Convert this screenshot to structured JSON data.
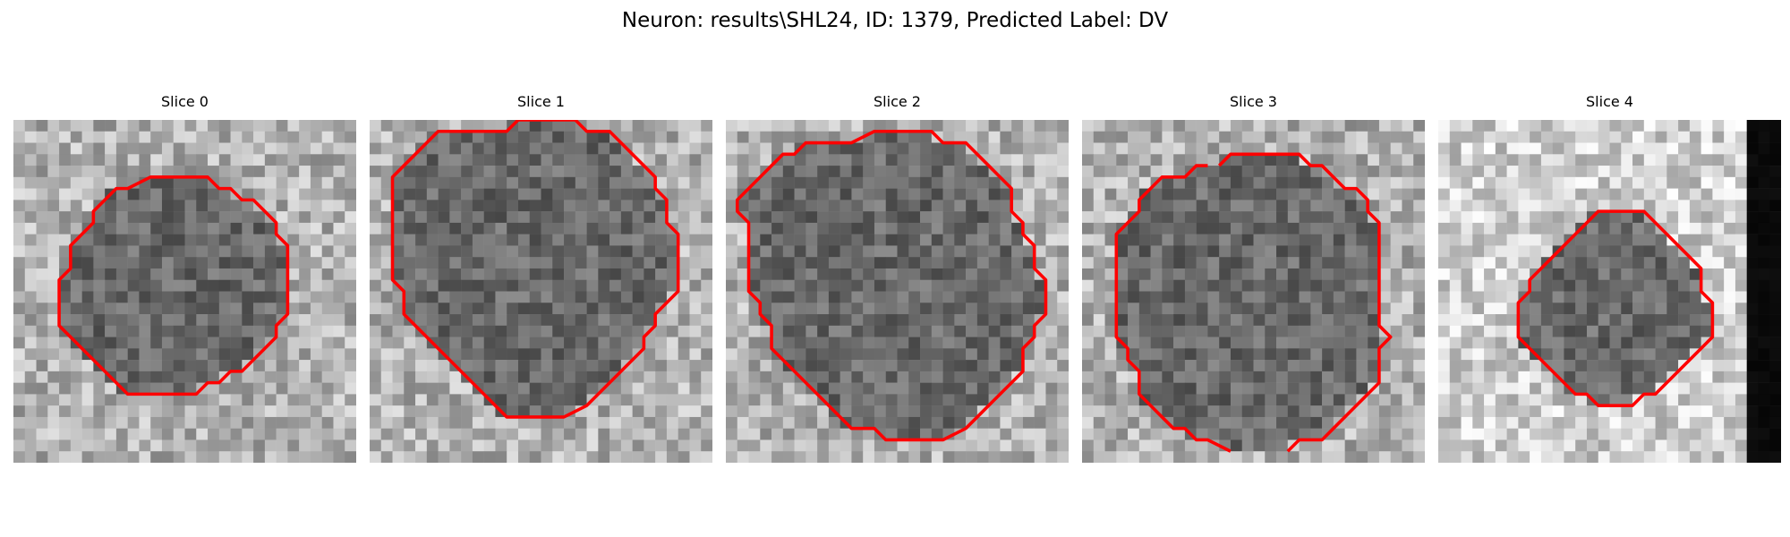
{
  "figure": {
    "title": "Neuron: results\\SHL24, ID: 1379, Predicted Label: DV"
  },
  "contour_color": "#ff0000",
  "slices": [
    {
      "title": "Slice 0",
      "contour": [
        [
          13,
          5
        ],
        [
          17,
          5
        ],
        [
          18,
          6
        ],
        [
          19,
          6
        ],
        [
          20,
          7
        ],
        [
          21,
          7
        ],
        [
          22,
          8
        ],
        [
          23,
          9
        ],
        [
          23,
          10
        ],
        [
          24,
          11
        ],
        [
          24,
          17
        ],
        [
          23,
          18
        ],
        [
          23,
          19
        ],
        [
          22,
          20
        ],
        [
          21,
          21
        ],
        [
          20,
          22
        ],
        [
          19,
          22
        ],
        [
          18,
          23
        ],
        [
          17,
          23
        ],
        [
          16,
          24
        ],
        [
          10,
          24
        ],
        [
          9,
          23
        ],
        [
          8,
          22
        ],
        [
          7,
          21
        ],
        [
          6,
          20
        ],
        [
          5,
          19
        ],
        [
          4,
          18
        ],
        [
          4,
          14
        ],
        [
          5,
          13
        ],
        [
          5,
          11
        ],
        [
          6,
          10
        ],
        [
          7,
          9
        ],
        [
          7,
          8
        ],
        [
          8,
          7
        ],
        [
          9,
          6
        ],
        [
          10,
          6
        ],
        [
          12,
          5
        ]
      ],
      "closed": true,
      "bg": "border",
      "dark_edge": false
    },
    {
      "title": "Slice 1",
      "contour": [
        [
          11,
          1
        ],
        [
          12,
          1
        ],
        [
          13,
          0
        ],
        [
          18,
          0
        ],
        [
          19,
          1
        ],
        [
          21,
          1
        ],
        [
          22,
          2
        ],
        [
          23,
          3
        ],
        [
          24,
          4
        ],
        [
          25,
          5
        ],
        [
          25,
          6
        ],
        [
          26,
          7
        ],
        [
          26,
          9
        ],
        [
          27,
          10
        ],
        [
          27,
          15
        ],
        [
          26,
          16
        ],
        [
          25,
          17
        ],
        [
          25,
          18
        ],
        [
          24,
          19
        ],
        [
          24,
          20
        ],
        [
          23,
          21
        ],
        [
          22,
          22
        ],
        [
          21,
          23
        ],
        [
          20,
          24
        ],
        [
          19,
          25
        ],
        [
          17,
          26
        ],
        [
          15,
          26
        ],
        [
          12,
          26
        ],
        [
          10,
          24
        ],
        [
          9,
          23
        ],
        [
          8,
          22
        ],
        [
          7,
          21
        ],
        [
          6,
          20
        ],
        [
          5,
          19
        ],
        [
          4,
          18
        ],
        [
          3,
          17
        ],
        [
          3,
          15
        ],
        [
          2,
          14
        ],
        [
          2,
          5
        ],
        [
          3,
          4
        ],
        [
          4,
          3
        ],
        [
          5,
          2
        ],
        [
          6,
          1
        ],
        [
          8,
          1
        ],
        [
          9,
          1
        ],
        [
          10,
          1
        ]
      ],
      "closed": true,
      "bg": "border",
      "dark_edge": false
    },
    {
      "title": "Slice 2",
      "contour": [
        [
          11,
          2
        ],
        [
          13,
          1
        ],
        [
          18,
          1
        ],
        [
          19,
          2
        ],
        [
          21,
          2
        ],
        [
          22,
          3
        ],
        [
          23,
          4
        ],
        [
          24,
          5
        ],
        [
          25,
          6
        ],
        [
          25,
          8
        ],
        [
          26,
          9
        ],
        [
          26,
          10
        ],
        [
          27,
          11
        ],
        [
          27,
          13
        ],
        [
          28,
          14
        ],
        [
          28,
          17
        ],
        [
          27,
          18
        ],
        [
          27,
          19
        ],
        [
          26,
          20
        ],
        [
          26,
          22
        ],
        [
          25,
          23
        ],
        [
          24,
          24
        ],
        [
          23,
          25
        ],
        [
          22,
          26
        ],
        [
          21,
          27
        ],
        [
          19,
          28
        ],
        [
          14,
          28
        ],
        [
          13,
          27
        ],
        [
          11,
          27
        ],
        [
          10,
          26
        ],
        [
          9,
          25
        ],
        [
          8,
          24
        ],
        [
          7,
          23
        ],
        [
          6,
          22
        ],
        [
          5,
          21
        ],
        [
          4,
          20
        ],
        [
          4,
          18
        ],
        [
          3,
          17
        ],
        [
          3,
          16
        ],
        [
          2,
          15
        ],
        [
          2,
          9
        ],
        [
          1,
          8
        ],
        [
          1,
          7
        ],
        [
          2,
          6
        ],
        [
          3,
          5
        ],
        [
          4,
          4
        ],
        [
          5,
          3
        ],
        [
          6,
          3
        ],
        [
          7,
          2
        ],
        [
          9,
          2
        ]
      ],
      "closed": true,
      "bg": "border",
      "dark_edge": false
    },
    {
      "title": "Slice 3",
      "contour": [
        [
          12,
          4
        ],
        [
          13,
          3
        ],
        [
          19,
          3
        ],
        [
          20,
          4
        ],
        [
          21,
          4
        ],
        [
          22,
          5
        ],
        [
          23,
          6
        ],
        [
          24,
          6
        ],
        [
          25,
          7
        ],
        [
          25,
          8
        ],
        [
          26,
          9
        ],
        [
          26,
          10
        ],
        [
          26,
          18
        ],
        [
          27,
          19
        ],
        [
          26,
          20
        ],
        [
          26,
          23
        ],
        [
          25,
          24
        ],
        [
          24,
          25
        ],
        [
          23,
          26
        ],
        [
          22,
          27
        ],
        [
          21,
          28
        ],
        [
          19,
          28
        ],
        [
          18,
          29
        ]
      ],
      "contour2": [
        [
          13,
          29
        ],
        [
          11,
          28
        ],
        [
          10,
          28
        ],
        [
          9,
          27
        ],
        [
          8,
          27
        ],
        [
          7,
          26
        ],
        [
          6,
          25
        ],
        [
          5,
          24
        ],
        [
          5,
          22
        ],
        [
          4,
          21
        ],
        [
          4,
          20
        ],
        [
          3,
          19
        ],
        [
          3,
          10
        ],
        [
          4,
          9
        ],
        [
          5,
          8
        ],
        [
          5,
          7
        ],
        [
          6,
          6
        ],
        [
          7,
          5
        ],
        [
          9,
          5
        ],
        [
          10,
          4
        ],
        [
          11,
          4
        ]
      ],
      "closed": false,
      "bg": "border",
      "dark_edge": false
    },
    {
      "title": "Slice 4",
      "contour": [
        [
          14,
          8
        ],
        [
          18,
          8
        ],
        [
          19,
          9
        ],
        [
          20,
          10
        ],
        [
          21,
          11
        ],
        [
          22,
          12
        ],
        [
          23,
          13
        ],
        [
          23,
          15
        ],
        [
          24,
          16
        ],
        [
          24,
          19
        ],
        [
          23,
          20
        ],
        [
          22,
          21
        ],
        [
          21,
          22
        ],
        [
          20,
          23
        ],
        [
          19,
          24
        ],
        [
          18,
          24
        ],
        [
          17,
          25
        ],
        [
          14,
          25
        ],
        [
          13,
          24
        ],
        [
          12,
          24
        ],
        [
          11,
          23
        ],
        [
          10,
          22
        ],
        [
          9,
          21
        ],
        [
          8,
          20
        ],
        [
          7,
          19
        ],
        [
          7,
          16
        ],
        [
          8,
          15
        ],
        [
          8,
          14
        ],
        [
          9,
          13
        ],
        [
          10,
          12
        ],
        [
          11,
          11
        ],
        [
          12,
          10
        ],
        [
          13,
          9
        ]
      ],
      "closed": true,
      "bg": "light",
      "dark_edge": true
    }
  ]
}
